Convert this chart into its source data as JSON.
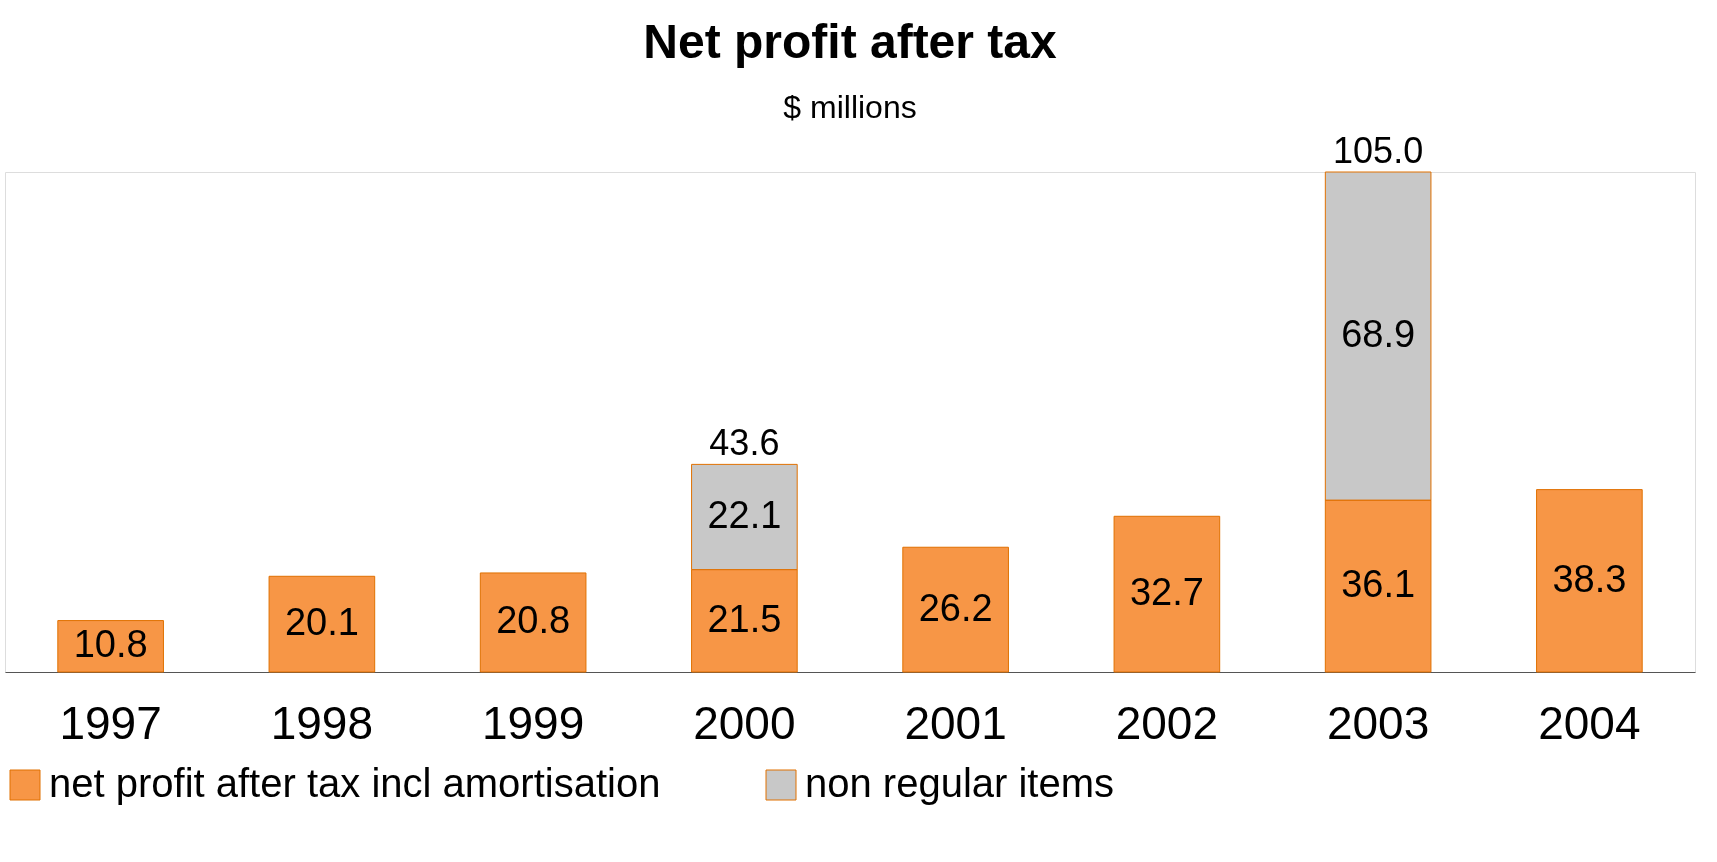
{
  "chart_data": {
    "type": "bar",
    "title": "Net profit after tax",
    "subtitle": "$ millions",
    "categories": [
      "1997",
      "1998",
      "1999",
      "2000",
      "2001",
      "2002",
      "2003",
      "2004"
    ],
    "stacked": true,
    "data_labels": true,
    "legend": "bottom",
    "grid": false,
    "series": [
      {
        "name": "net profit after tax incl amortisation",
        "color": "#f79646",
        "values": [
          10.8,
          20.1,
          20.8,
          21.5,
          26.2,
          32.7,
          36.1,
          38.3
        ]
      },
      {
        "name": "non regular items",
        "color": "#c8c8c8",
        "values": [
          null,
          null,
          null,
          22.1,
          null,
          null,
          68.9,
          null
        ]
      }
    ],
    "totals": [
      null,
      null,
      null,
      "43.6",
      null,
      null,
      "105.0",
      null
    ]
  }
}
